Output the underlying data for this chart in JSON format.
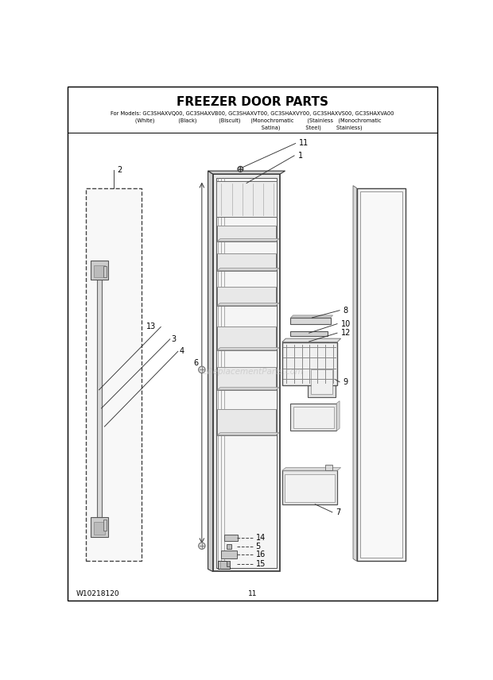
{
  "title": "FREEZER DOOR PARTS",
  "sub1": "For Models: GC3SHAXVQ00, GC3SHAXVB00, GC3SHAXVT00, GC3SHAXVY00, GC3SHAXVS00, GC3SHAXVA00",
  "sub2": "       (White)              (Black)             (Biscuit)      (Monochromatic        (Stainless   (Monochromatic",
  "sub3": "                                                                      Satina)               Steel)         Stainless)",
  "footer_left": "W10218120",
  "footer_center": "11",
  "bg_color": "#ffffff",
  "watermark": "eReplacementParts.com",
  "lc": "#333333",
  "fc_light": "#f0f0f0",
  "fc_door": "#e8e8e8",
  "fc_part": "#d8d8d8"
}
